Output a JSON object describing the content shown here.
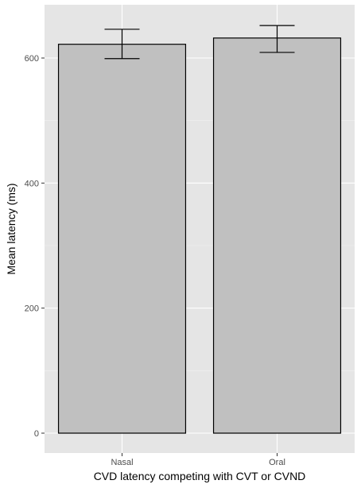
{
  "chart_data": {
    "type": "bar",
    "categories": [
      "Nasal",
      "Oral"
    ],
    "values": [
      622,
      632
    ],
    "error_low": [
      599,
      609
    ],
    "error_high": [
      646,
      652
    ],
    "title": "",
    "xlabel": "CVD latency competing with CVT or CVND",
    "ylabel": "Mean latency (ms)",
    "ylim": [
      0,
      680
    ],
    "yticks": [
      0,
      200,
      400,
      600
    ],
    "ytick_labels": [
      "0",
      "200",
      "400",
      "600"
    ],
    "grid": true,
    "legend": "none",
    "colors": {
      "panel_background": "#e5e5e5",
      "grid_major": "#ffffff",
      "bar_fill": "#c0c0c0",
      "bar_stroke": "#000000",
      "errorbar": "#000000"
    }
  }
}
